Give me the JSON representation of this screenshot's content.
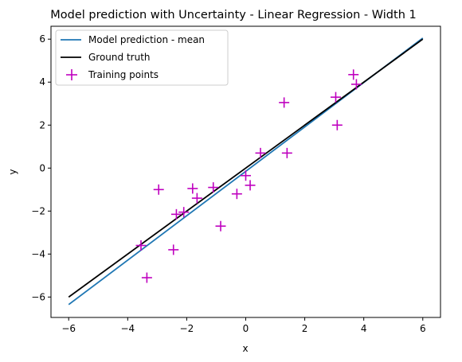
{
  "chart_data": {
    "type": "line",
    "title": "Model prediction with Uncertainty - Linear Regression - Width 1",
    "xlabel": "x",
    "ylabel": "y",
    "xlim": [
      -6.6,
      6.6
    ],
    "ylim": [
      -6.95,
      6.6
    ],
    "xticks": [
      -6,
      -4,
      -2,
      0,
      2,
      4,
      6
    ],
    "yticks": [
      -6,
      -4,
      -2,
      0,
      2,
      4,
      6
    ],
    "xtick_labels": [
      "−6",
      "−4",
      "−2",
      "0",
      "2",
      "4",
      "6"
    ],
    "ytick_labels": [
      "−6",
      "−4",
      "−2",
      "0",
      "2",
      "4",
      "6"
    ],
    "grid": false,
    "legend_position": "top-left",
    "series": [
      {
        "name": "Model prediction - mean",
        "kind": "line",
        "color": "#1f77b4",
        "x": [
          -6,
          6
        ],
        "y": [
          -6.35,
          6.05
        ]
      },
      {
        "name": "Ground truth",
        "kind": "line",
        "color": "#000000",
        "x": [
          -6,
          6
        ],
        "y": [
          -6.0,
          6.0
        ]
      },
      {
        "name": "Training points",
        "kind": "scatter",
        "marker": "plus",
        "color": "#bf00bf",
        "points": [
          [
            -3.55,
            -3.6
          ],
          [
            -3.35,
            -5.1
          ],
          [
            -2.95,
            -1.0
          ],
          [
            -2.45,
            -3.8
          ],
          [
            -2.35,
            -2.15
          ],
          [
            -2.1,
            -2.05
          ],
          [
            -1.8,
            -0.95
          ],
          [
            -1.65,
            -1.4
          ],
          [
            -1.1,
            -0.9
          ],
          [
            -0.85,
            -2.7
          ],
          [
            -0.3,
            -1.2
          ],
          [
            0.0,
            -0.35
          ],
          [
            0.15,
            -0.8
          ],
          [
            0.5,
            0.7
          ],
          [
            1.3,
            3.05
          ],
          [
            1.4,
            0.7
          ],
          [
            3.05,
            3.3
          ],
          [
            3.1,
            2.0
          ],
          [
            3.65,
            4.35
          ],
          [
            3.75,
            3.9
          ]
        ]
      }
    ]
  }
}
